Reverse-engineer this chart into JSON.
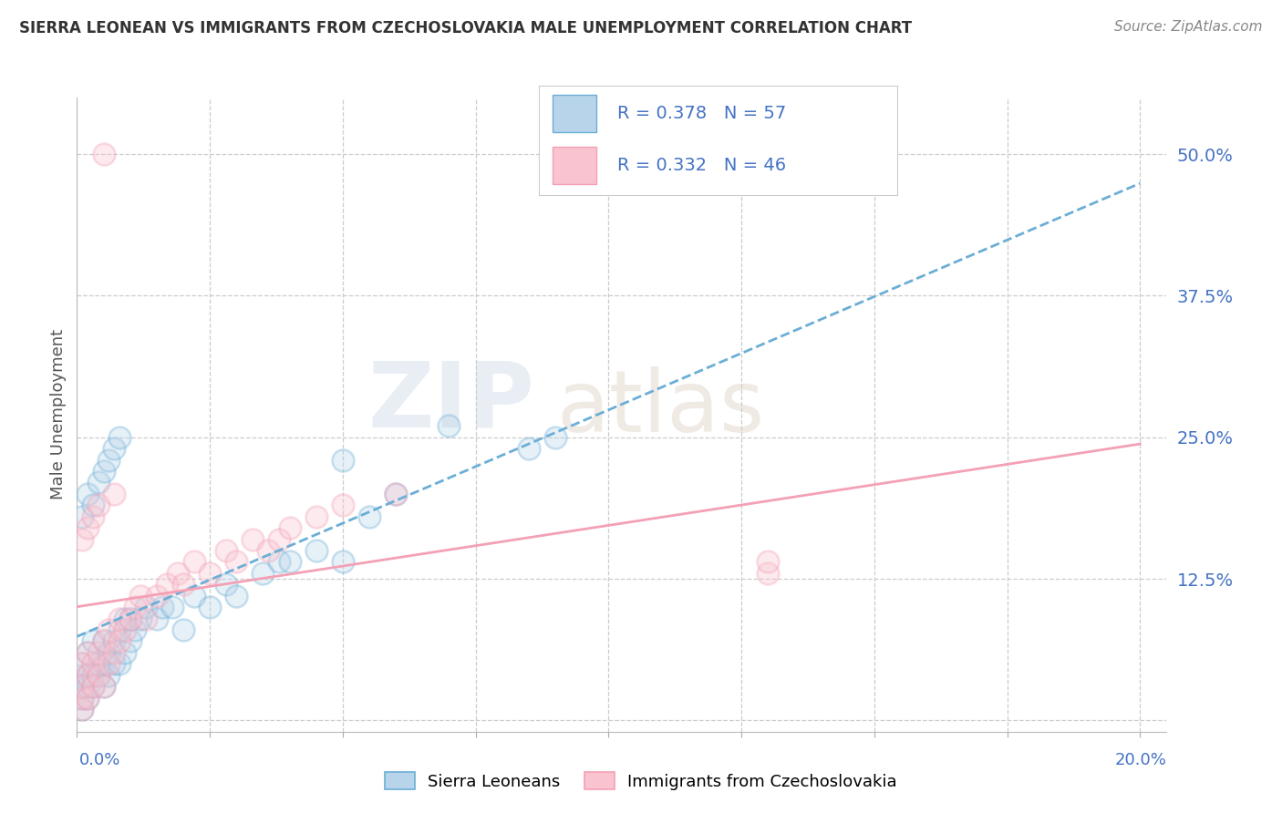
{
  "title": "SIERRA LEONEAN VS IMMIGRANTS FROM CZECHOSLOVAKIA MALE UNEMPLOYMENT CORRELATION CHART",
  "source": "Source: ZipAtlas.com",
  "ylabel": "Male Unemployment",
  "y_ticks": [
    0.0,
    0.125,
    0.25,
    0.375,
    0.5
  ],
  "y_tick_labels": [
    "",
    "12.5%",
    "25.0%",
    "37.5%",
    "50.0%"
  ],
  "x_ticks": [
    0.0,
    0.025,
    0.05,
    0.075,
    0.1,
    0.125,
    0.15,
    0.175,
    0.2
  ],
  "xlim": [
    0.0,
    0.205
  ],
  "ylim": [
    -0.01,
    0.55
  ],
  "series1_label": "Sierra Leoneans",
  "series1_color": "#6baed6",
  "series1_fill": "#b8d4ea",
  "series1_R": 0.378,
  "series1_N": 57,
  "series2_label": "Immigrants from Czechoslovakia",
  "series2_color": "#f4a0b5",
  "series2_fill": "#f9c4d0",
  "series2_R": 0.332,
  "series2_N": 46,
  "watermark_zip": "ZIP",
  "watermark_atlas": "atlas",
  "background_color": "#ffffff",
  "scatter_size": 300,
  "scatter_alpha": 0.35,
  "scatter_linewidth": 1.8,
  "series1_x": [
    0.001,
    0.001,
    0.001,
    0.001,
    0.001,
    0.002,
    0.002,
    0.002,
    0.002,
    0.003,
    0.003,
    0.003,
    0.004,
    0.004,
    0.005,
    0.005,
    0.005,
    0.006,
    0.006,
    0.007,
    0.007,
    0.008,
    0.008,
    0.009,
    0.009,
    0.01,
    0.01,
    0.011,
    0.012,
    0.013,
    0.015,
    0.016,
    0.018,
    0.02,
    0.022,
    0.025,
    0.028,
    0.03,
    0.035,
    0.038,
    0.04,
    0.045,
    0.05,
    0.055,
    0.06,
    0.001,
    0.002,
    0.003,
    0.004,
    0.005,
    0.006,
    0.007,
    0.008,
    0.05,
    0.07,
    0.085,
    0.09
  ],
  "series1_y": [
    0.01,
    0.02,
    0.03,
    0.04,
    0.05,
    0.02,
    0.03,
    0.04,
    0.06,
    0.03,
    0.04,
    0.07,
    0.04,
    0.05,
    0.03,
    0.05,
    0.07,
    0.04,
    0.06,
    0.05,
    0.07,
    0.05,
    0.08,
    0.06,
    0.09,
    0.07,
    0.09,
    0.08,
    0.09,
    0.1,
    0.09,
    0.1,
    0.1,
    0.08,
    0.11,
    0.1,
    0.12,
    0.11,
    0.13,
    0.14,
    0.14,
    0.15,
    0.14,
    0.18,
    0.2,
    0.18,
    0.2,
    0.19,
    0.21,
    0.22,
    0.23,
    0.24,
    0.25,
    0.23,
    0.26,
    0.24,
    0.25
  ],
  "series2_x": [
    0.001,
    0.001,
    0.001,
    0.001,
    0.002,
    0.002,
    0.002,
    0.003,
    0.003,
    0.004,
    0.004,
    0.005,
    0.005,
    0.006,
    0.006,
    0.007,
    0.008,
    0.008,
    0.009,
    0.01,
    0.011,
    0.012,
    0.013,
    0.015,
    0.017,
    0.019,
    0.02,
    0.022,
    0.025,
    0.028,
    0.03,
    0.033,
    0.036,
    0.038,
    0.04,
    0.045,
    0.05,
    0.06,
    0.001,
    0.002,
    0.003,
    0.004,
    0.005,
    0.007,
    0.13,
    0.13
  ],
  "series2_y": [
    0.01,
    0.02,
    0.03,
    0.05,
    0.02,
    0.04,
    0.06,
    0.03,
    0.05,
    0.04,
    0.06,
    0.03,
    0.07,
    0.05,
    0.08,
    0.06,
    0.07,
    0.09,
    0.08,
    0.09,
    0.1,
    0.11,
    0.09,
    0.11,
    0.12,
    0.13,
    0.12,
    0.14,
    0.13,
    0.15,
    0.14,
    0.16,
    0.15,
    0.16,
    0.17,
    0.18,
    0.19,
    0.2,
    0.16,
    0.17,
    0.18,
    0.19,
    0.5,
    0.2,
    0.13,
    0.14
  ]
}
